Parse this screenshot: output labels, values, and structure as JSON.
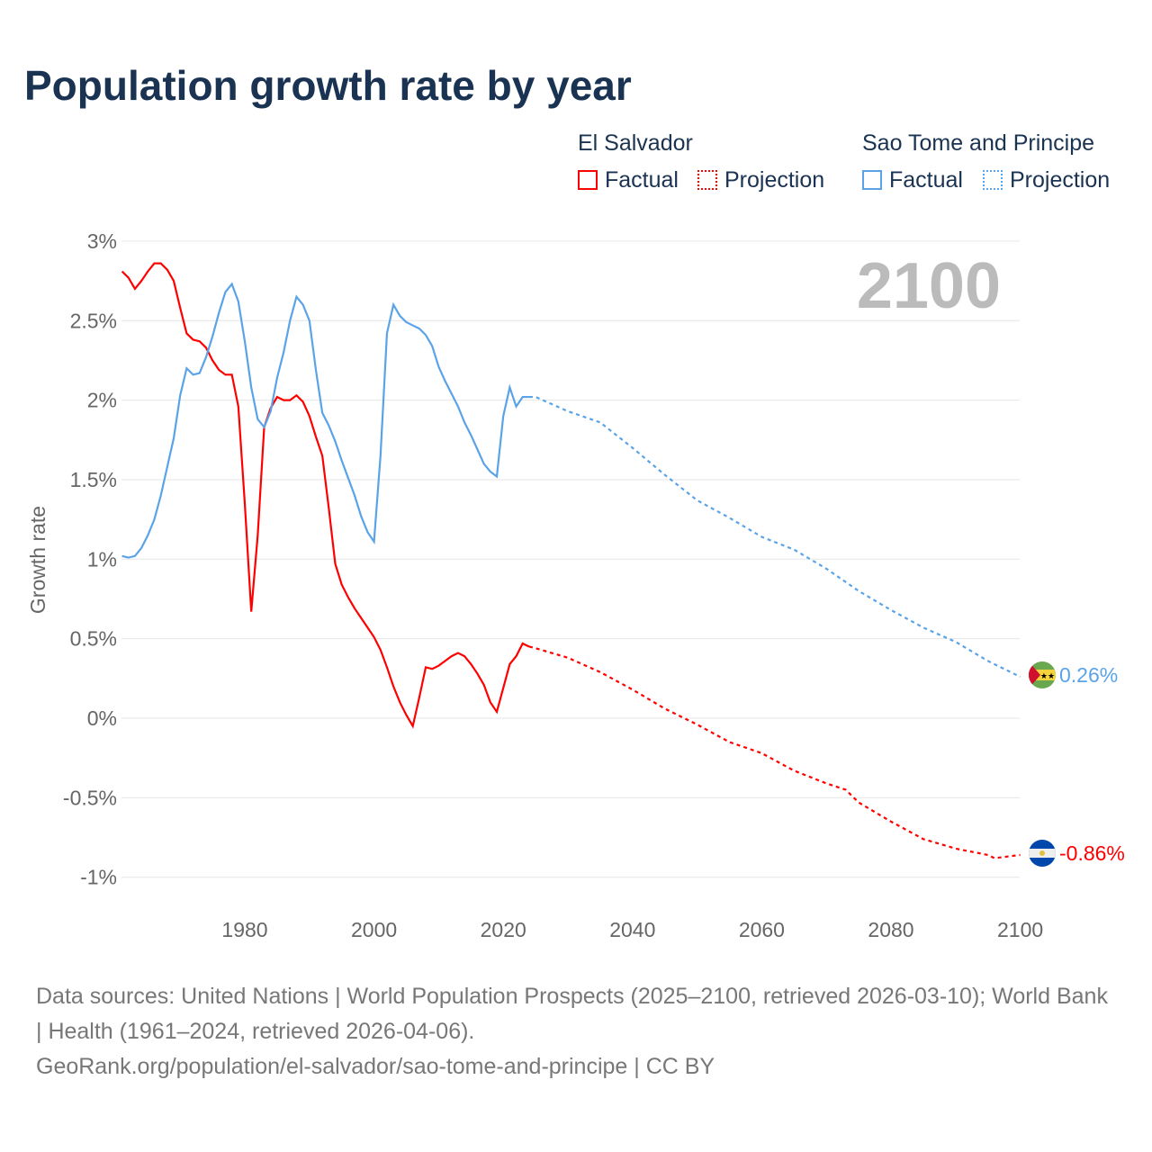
{
  "chart_data": {
    "type": "line",
    "title": "Population growth rate by year",
    "ylabel": "Growth rate",
    "xlabel": "",
    "xlim": [
      1961,
      2100
    ],
    "ylim": [
      -1.1,
      3.0
    ],
    "xticks": [
      "1980",
      "2000",
      "2020",
      "2040",
      "2060",
      "2080",
      "2100"
    ],
    "yticks": [
      {
        "v": 3,
        "label": "3%"
      },
      {
        "v": 2.5,
        "label": "2.5%"
      },
      {
        "v": 2,
        "label": "2%"
      },
      {
        "v": 1.5,
        "label": "1.5%"
      },
      {
        "v": 1,
        "label": "1%"
      },
      {
        "v": 0.5,
        "label": "0.5%"
      },
      {
        "v": 0,
        "label": "0%"
      },
      {
        "v": -0.5,
        "label": "-0.5%"
      },
      {
        "v": -1,
        "label": "-1%"
      }
    ],
    "year_label": "2100",
    "legend": {
      "groups": [
        {
          "name": "El Salvador",
          "factual": "Factual",
          "projection": "Projection"
        },
        {
          "name": "Sao Tome and Principe",
          "factual": "Factual",
          "projection": "Projection"
        }
      ]
    },
    "series": [
      {
        "name": "El Salvador",
        "color": "#ff0000",
        "end_label": "-0.86%",
        "factual_start": 1961,
        "factual": [
          2.81,
          2.77,
          2.7,
          2.75,
          2.81,
          2.86,
          2.86,
          2.82,
          2.75,
          2.58,
          2.42,
          2.38,
          2.37,
          2.33,
          2.25,
          2.19,
          2.16,
          2.16,
          1.96,
          1.35,
          0.67,
          1.15,
          1.83,
          1.95,
          2.02,
          2.0,
          2.0,
          2.03,
          1.99,
          1.9,
          1.77,
          1.65,
          1.32,
          0.97,
          0.84,
          0.76,
          0.69,
          0.63,
          0.57,
          0.51,
          0.43,
          0.32,
          0.2,
          0.1,
          0.02,
          -0.05,
          0.13,
          0.32,
          0.31,
          0.33,
          0.36,
          0.39,
          0.41,
          0.39,
          0.34,
          0.28,
          0.21,
          0.1,
          0.04,
          0.19,
          0.34,
          0.39,
          0.47,
          0.45
        ],
        "projection_years": [
          2024,
          2025,
          2030,
          2035,
          2040,
          2045,
          2050,
          2055,
          2060,
          2065,
          2070,
          2073,
          2075,
          2080,
          2085,
          2090,
          2095,
          2096,
          2100
        ],
        "projection": [
          0.45,
          0.44,
          0.38,
          0.29,
          0.18,
          0.06,
          -0.04,
          -0.15,
          -0.22,
          -0.33,
          -0.41,
          -0.45,
          -0.53,
          -0.65,
          -0.76,
          -0.82,
          -0.86,
          -0.88,
          -0.86
        ]
      },
      {
        "name": "Sao Tome and Principe",
        "color": "#5aa3e8",
        "end_label": "0.26%",
        "factual_start": 1961,
        "factual": [
          1.02,
          1.01,
          1.02,
          1.07,
          1.15,
          1.25,
          1.4,
          1.58,
          1.76,
          2.03,
          2.2,
          2.16,
          2.17,
          2.27,
          2.4,
          2.55,
          2.68,
          2.73,
          2.62,
          2.37,
          2.08,
          1.88,
          1.83,
          1.93,
          2.14,
          2.3,
          2.5,
          2.65,
          2.6,
          2.5,
          2.19,
          1.92,
          1.84,
          1.74,
          1.62,
          1.51,
          1.4,
          1.27,
          1.17,
          1.11,
          1.65,
          2.42,
          2.6,
          2.53,
          2.49,
          2.47,
          2.45,
          2.41,
          2.34,
          2.21,
          2.12,
          2.04,
          1.96,
          1.86,
          1.78,
          1.69,
          1.6,
          1.55,
          1.52,
          1.9,
          2.08,
          1.96,
          2.02,
          2.02
        ],
        "projection_years": [
          2024,
          2025,
          2030,
          2035,
          2040,
          2045,
          2050,
          2055,
          2060,
          2065,
          2070,
          2075,
          2080,
          2085,
          2090,
          2095,
          2100
        ],
        "projection": [
          2.02,
          2.02,
          1.93,
          1.86,
          1.7,
          1.53,
          1.37,
          1.26,
          1.14,
          1.06,
          0.94,
          0.8,
          0.68,
          0.57,
          0.48,
          0.36,
          0.26
        ]
      }
    ]
  },
  "footer": {
    "line1": "Data sources: United Nations | World Population Prospects (2025–2100, retrieved 2026-03-10); World Bank | Health (1961–2024, retrieved 2026-04-06).",
    "line2": "GeoRank.org/population/el-salvador/sao-tome-and-principe | CC BY"
  }
}
